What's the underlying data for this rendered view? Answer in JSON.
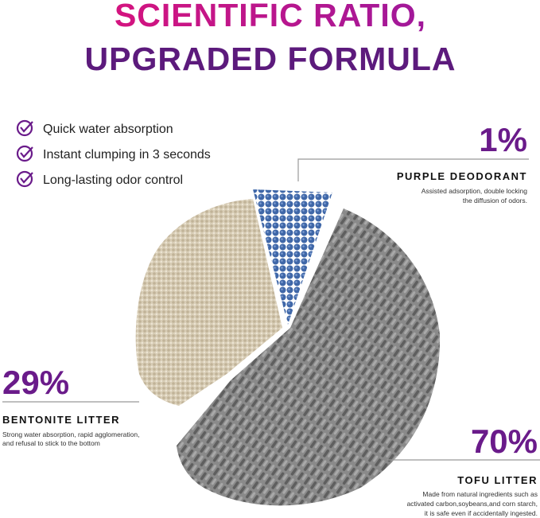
{
  "title": {
    "line1": "SCIENTIFIC RATIO,",
    "line2": "UPGRADED FORMULA"
  },
  "features": [
    "Quick water absorption",
    "Instant clumping in 3 seconds",
    "Long-lasting odor control"
  ],
  "segments": [
    {
      "percent": "1%",
      "name": "PURPLE DEODORANT",
      "description": [
        "Assisted adsorption, double locking",
        "the diffusion of odors."
      ]
    },
    {
      "percent": "29%",
      "name": "BENTONITE LITTER",
      "description": [
        "Strong water absorption, rapid agglomeration,",
        "and refusal to stick to the bottom"
      ]
    },
    {
      "percent": "70%",
      "name": "TOFU LITTER",
      "description": [
        "Made from natural ingredients such as",
        "activated carbon,soybeans,and corn starch,",
        "it is safe even if accidentally ingested."
      ]
    }
  ]
}
